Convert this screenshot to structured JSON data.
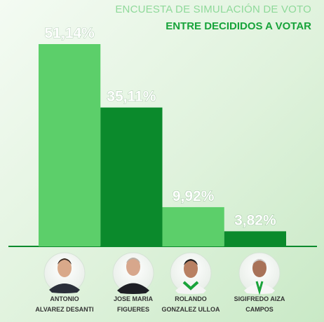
{
  "chart_data": {
    "type": "bar",
    "title": "ENCUESTA DE SIMULACIÓN DE VOTO",
    "subtitle": "ENTRE DECIDIDOS A VOTAR",
    "categories": [
      "ANTONIO\nALVAREZ DESANTI",
      "JOSE MARIA\nFIGUERES",
      "ROLANDO\nGONZALEZ ULLOA",
      "SIGIFREDO AIZA\nCAMPOS"
    ],
    "values": [
      51.14,
      35.11,
      9.92,
      3.82
    ],
    "value_labels": [
      "51,14%",
      "35,11%",
      "9,92%",
      "3,82%"
    ],
    "colors": [
      "#5ccf6a",
      "#0b8a2c",
      "#5ccf6a",
      "#0b8a2c"
    ]
  }
}
